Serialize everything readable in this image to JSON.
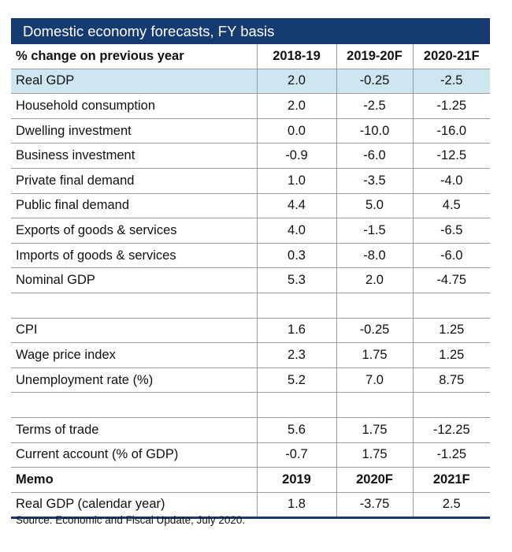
{
  "title": "Domestic economy forecasts, FY basis",
  "header": [
    "% change on previous year",
    "2018-19",
    "2019-20F",
    "2020-21F"
  ],
  "rows": [
    {
      "label": "Real GDP",
      "values": [
        "2.0",
        "-0.25",
        "-2.5"
      ],
      "highlight": true
    },
    {
      "label": "Household consumption",
      "values": [
        "2.0",
        "-2.5",
        "-1.25"
      ]
    },
    {
      "label": "Dwelling investment",
      "values": [
        "0.0",
        "-10.0",
        "-16.0"
      ]
    },
    {
      "label": "Business investment",
      "values": [
        "-0.9",
        "-6.0",
        "-12.5"
      ]
    },
    {
      "label": "Private final demand",
      "values": [
        "1.0",
        "-3.5",
        "-4.0"
      ]
    },
    {
      "label": "Public final demand",
      "values": [
        "4.4",
        "5.0",
        "4.5"
      ]
    },
    {
      "label": "Exports of goods & services",
      "values": [
        "4.0",
        "-1.5",
        "-6.5"
      ]
    },
    {
      "label": "Imports of goods & services",
      "values": [
        "0.3",
        "-8.0",
        "-6.0"
      ]
    },
    {
      "label": "Nominal GDP",
      "values": [
        "5.3",
        "2.0",
        "-4.75"
      ]
    },
    {
      "label": "",
      "values": [
        "",
        "",
        ""
      ]
    },
    {
      "label": "CPI",
      "values": [
        "1.6",
        "-0.25",
        "1.25"
      ]
    },
    {
      "label": "Wage price index",
      "values": [
        "2.3",
        "1.75",
        "1.25"
      ]
    },
    {
      "label": "Unemployment rate (%)",
      "values": [
        "5.2",
        "7.0",
        "8.75"
      ]
    },
    {
      "label": "",
      "values": [
        "",
        "",
        ""
      ]
    },
    {
      "label": "Terms of trade",
      "values": [
        "5.6",
        "1.75",
        "-12.25"
      ]
    },
    {
      "label": "Current account (% of GDP)",
      "values": [
        "-0.7",
        "1.75",
        "-1.25"
      ]
    },
    {
      "label": "Memo",
      "values": [
        "2019",
        "2020F",
        "2021F"
      ],
      "memo": true
    },
    {
      "label": "Real GDP (calendar year)",
      "values": [
        "1.8",
        "-3.75",
        "2.5"
      ]
    }
  ],
  "source": "Source: Economic and Fiscal Update, July 2020.",
  "colors": {
    "title_bar": "#163a72",
    "highlight_row": "#cde6f0",
    "rule": "#9c9c9c"
  }
}
